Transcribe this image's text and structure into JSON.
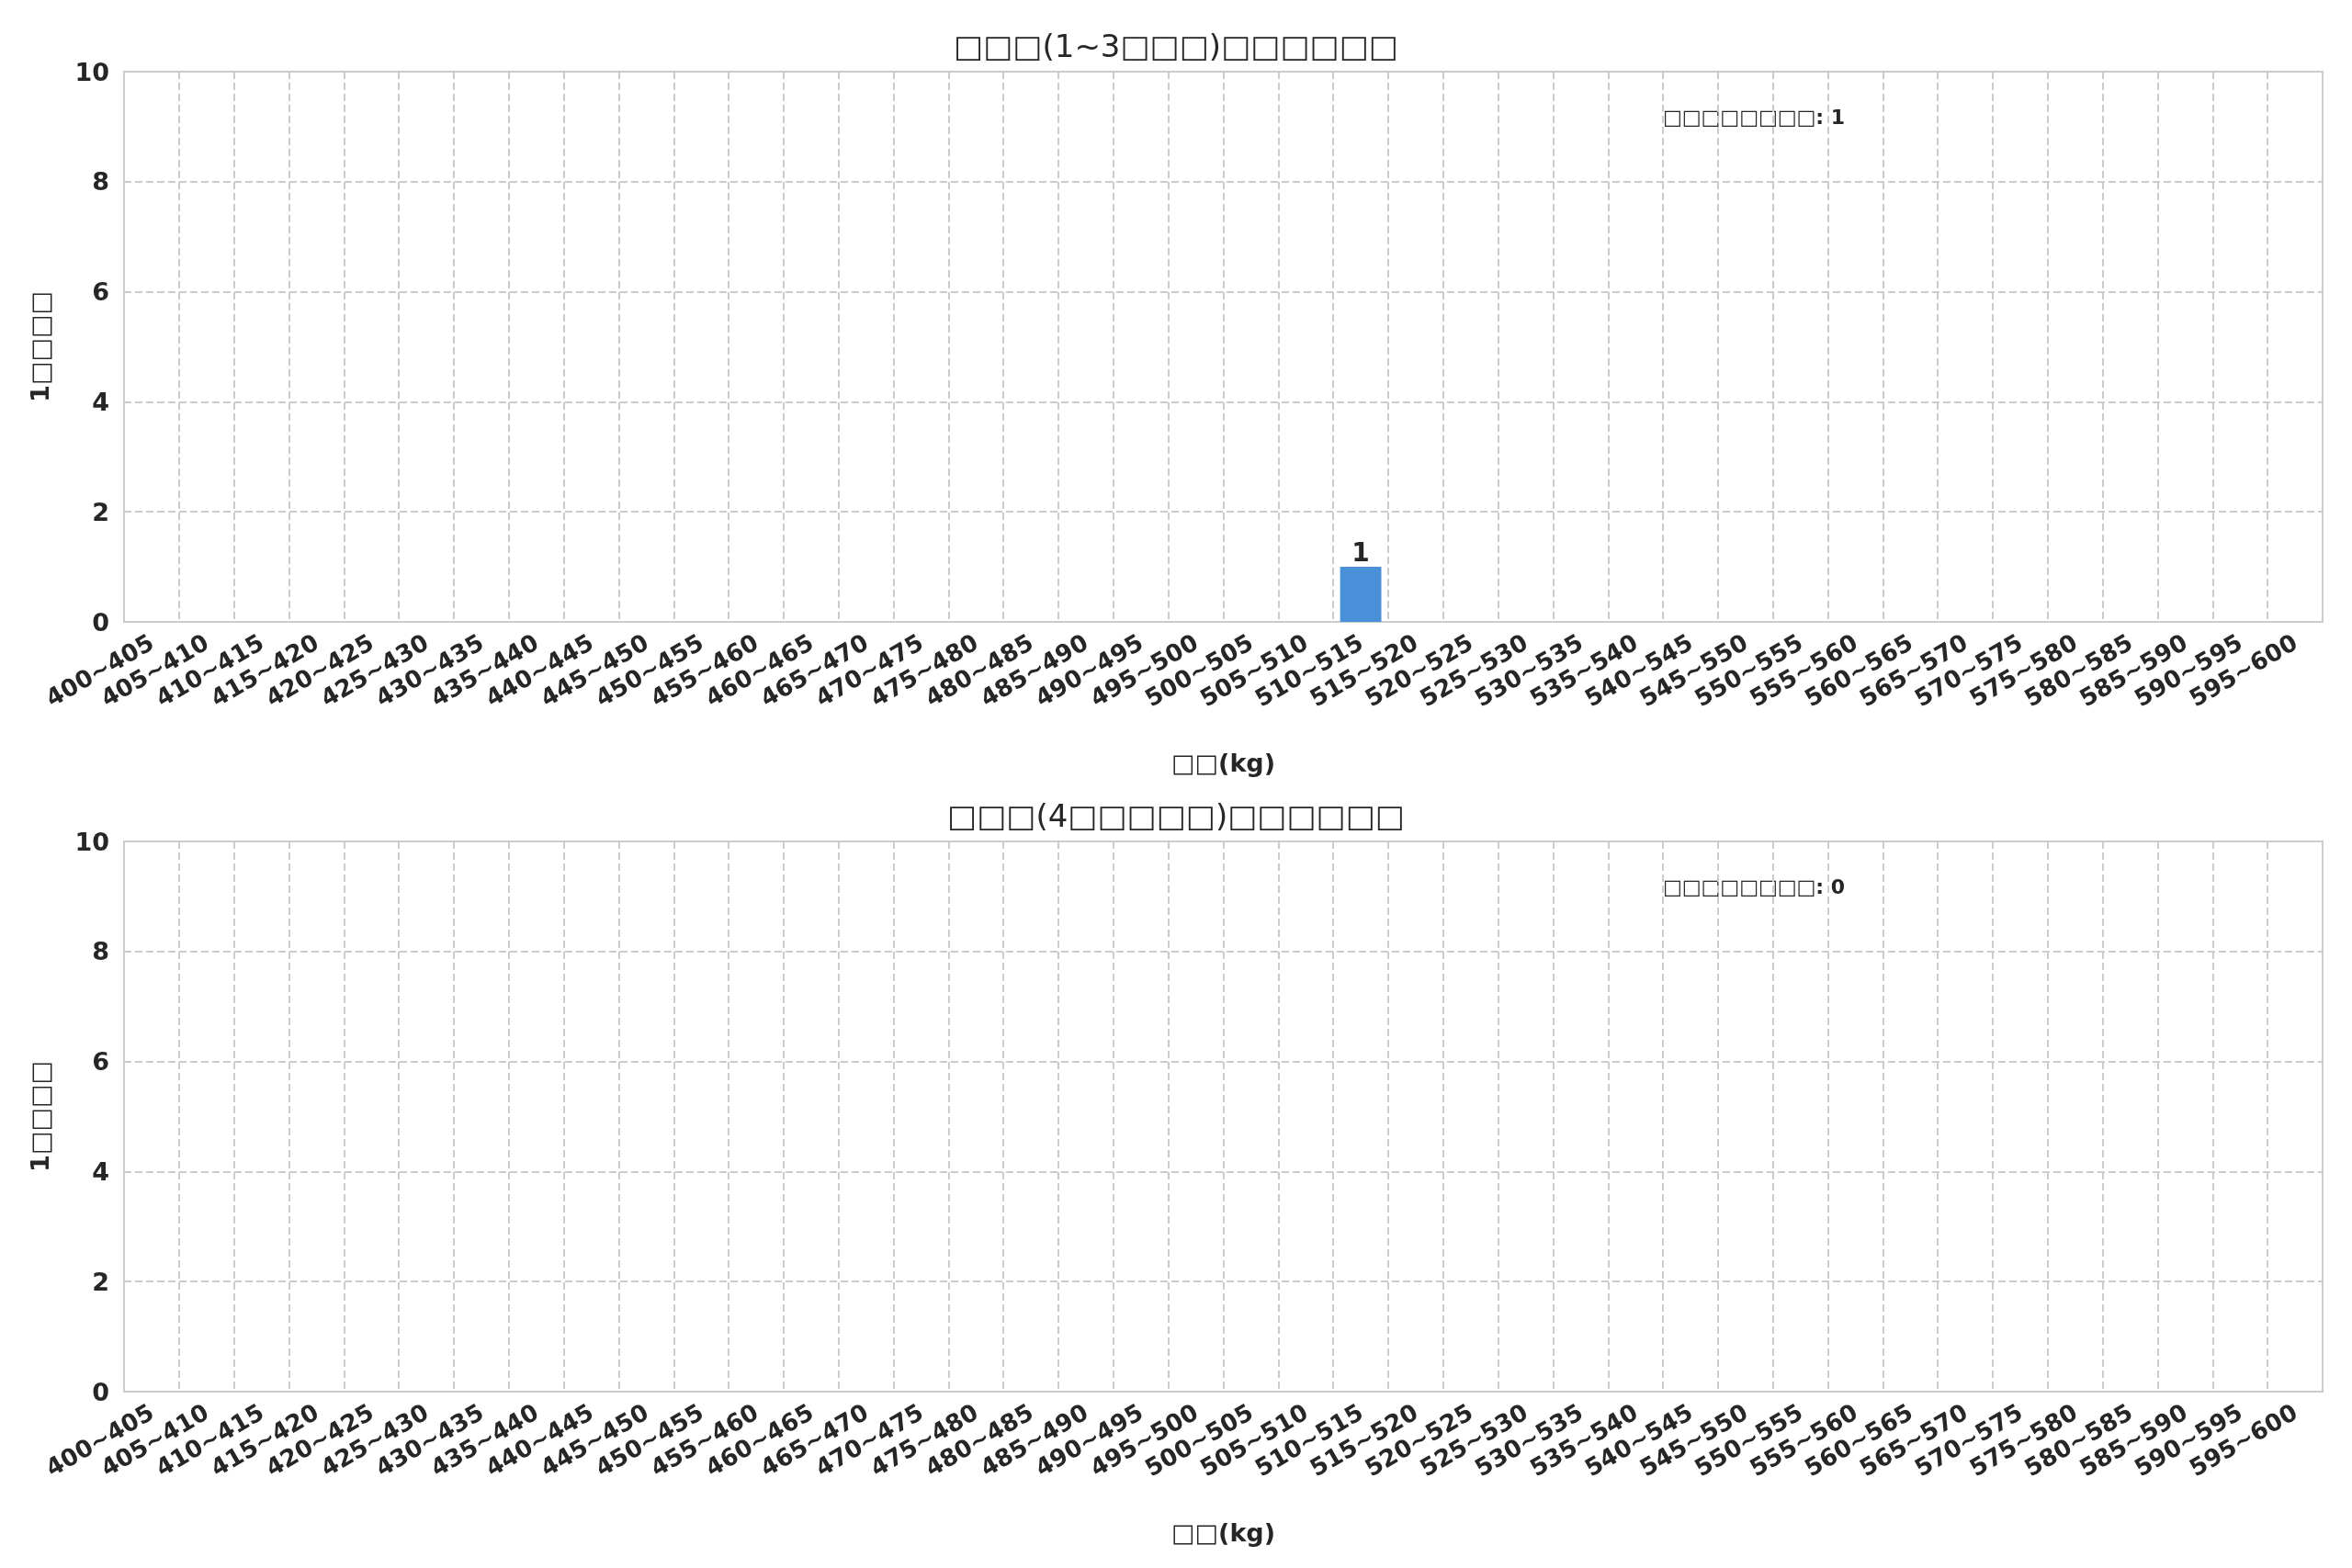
{
  "chart_data": [
    {
      "type": "bar",
      "title": "□□□(1~3□□□)□□□□□□",
      "xlabel": "□□(kg)",
      "ylabel": "1□□□□",
      "annotations": [
        "□□□□□□□□: 1"
      ],
      "categories": [
        "400~405",
        "405~410",
        "410~415",
        "415~420",
        "420~425",
        "425~430",
        "430~435",
        "435~440",
        "440~445",
        "445~450",
        "450~455",
        "455~460",
        "460~465",
        "465~470",
        "470~475",
        "475~480",
        "480~485",
        "485~490",
        "490~495",
        "495~500",
        "500~505",
        "505~510",
        "510~515",
        "515~520",
        "520~525",
        "525~530",
        "530~535",
        "535~540",
        "540~545",
        "545~550",
        "550~555",
        "555~560",
        "560~565",
        "565~570",
        "570~575",
        "575~580",
        "580~585",
        "585~590",
        "590~595",
        "595~600"
      ],
      "values": [
        0,
        0,
        0,
        0,
        0,
        0,
        0,
        0,
        0,
        0,
        0,
        0,
        0,
        0,
        0,
        0,
        0,
        0,
        0,
        0,
        0,
        0,
        1,
        0,
        0,
        0,
        0,
        0,
        0,
        0,
        0,
        0,
        0,
        0,
        0,
        0,
        0,
        0,
        0,
        0
      ],
      "value_labels": [
        null,
        null,
        null,
        null,
        null,
        null,
        null,
        null,
        null,
        null,
        null,
        null,
        null,
        null,
        null,
        null,
        null,
        null,
        null,
        null,
        null,
        null,
        "1",
        null,
        null,
        null,
        null,
        null,
        null,
        null,
        null,
        null,
        null,
        null,
        null,
        null,
        null,
        null,
        null,
        null
      ],
      "color": "#4a90d9",
      "ylim": [
        0,
        10
      ],
      "yticks": [
        0,
        2,
        4,
        6,
        8,
        10
      ],
      "grid": true,
      "line_style": "dashed"
    },
    {
      "type": "bar",
      "title": "□□□(4□□□□□)□□□□□□",
      "xlabel": "□□(kg)",
      "ylabel": "1□□□□",
      "annotations": [
        "□□□□□□□□: 0"
      ],
      "categories": [
        "400~405",
        "405~410",
        "410~415",
        "415~420",
        "420~425",
        "425~430",
        "430~435",
        "435~440",
        "440~445",
        "445~450",
        "450~455",
        "455~460",
        "460~465",
        "465~470",
        "470~475",
        "475~480",
        "480~485",
        "485~490",
        "490~495",
        "495~500",
        "500~505",
        "505~510",
        "510~515",
        "515~520",
        "520~525",
        "525~530",
        "530~535",
        "535~540",
        "540~545",
        "545~550",
        "550~555",
        "555~560",
        "560~565",
        "565~570",
        "570~575",
        "575~580",
        "580~585",
        "585~590",
        "590~595",
        "595~600"
      ],
      "values": [
        0,
        0,
        0,
        0,
        0,
        0,
        0,
        0,
        0,
        0,
        0,
        0,
        0,
        0,
        0,
        0,
        0,
        0,
        0,
        0,
        0,
        0,
        0,
        0,
        0,
        0,
        0,
        0,
        0,
        0,
        0,
        0,
        0,
        0,
        0,
        0,
        0,
        0,
        0,
        0
      ],
      "color": "#4a90d9",
      "ylim": [
        0,
        10
      ],
      "yticks": [
        0,
        2,
        4,
        6,
        8,
        10
      ],
      "grid": true,
      "line_style": "dashed"
    }
  ]
}
